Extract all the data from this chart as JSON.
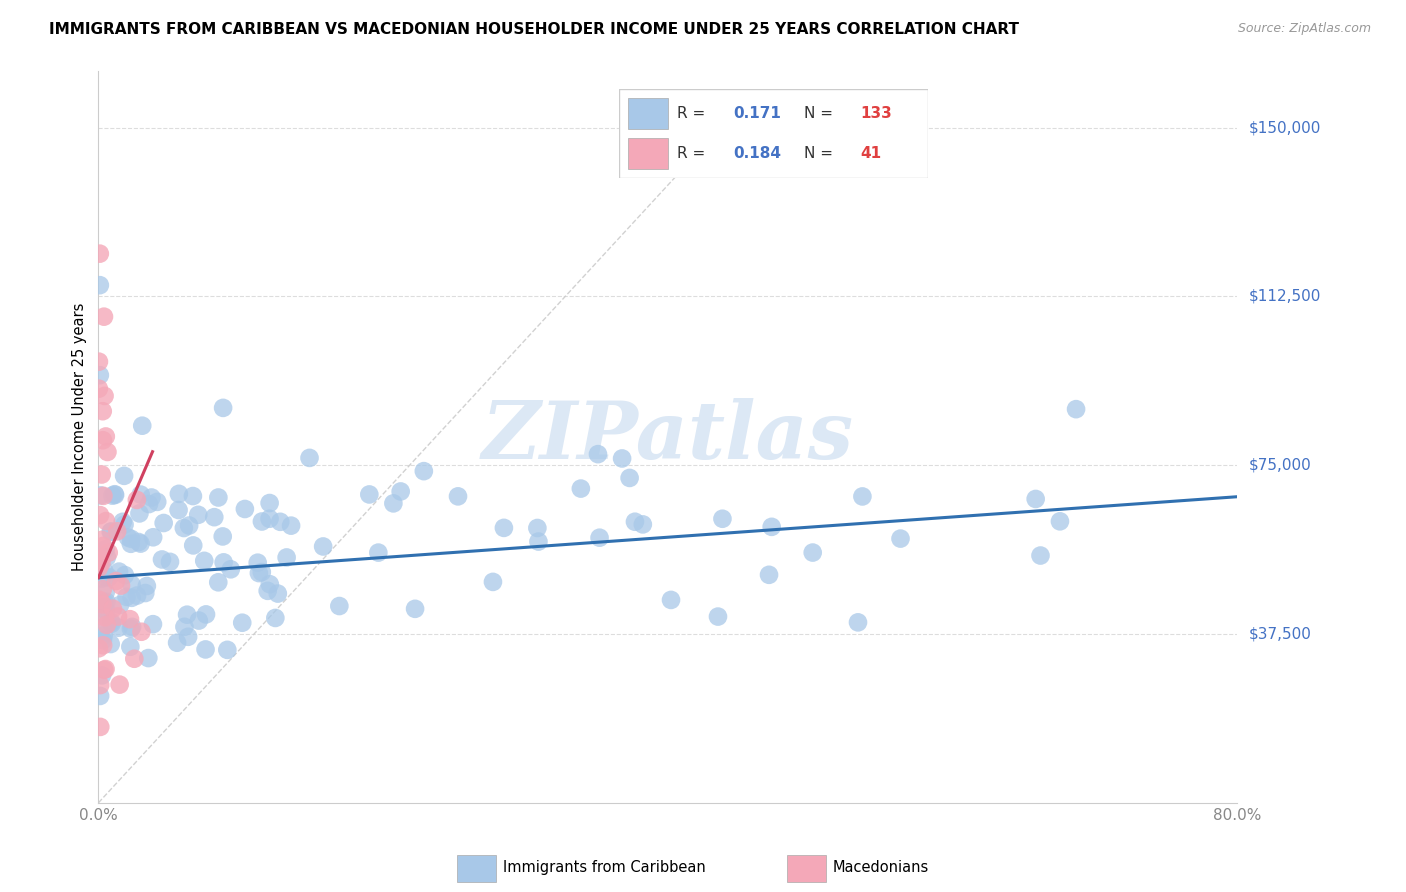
{
  "title": "IMMIGRANTS FROM CARIBBEAN VS MACEDONIAN HOUSEHOLDER INCOME UNDER 25 YEARS CORRELATION CHART",
  "source": "Source: ZipAtlas.com",
  "ylabel": "Householder Income Under 25 years",
  "ytick_labels": [
    "$37,500",
    "$75,000",
    "$112,500",
    "$150,000"
  ],
  "ytick_values": [
    37500,
    75000,
    112500,
    150000
  ],
  "ymin": 0,
  "ymax": 162500,
  "xmin": 0.0,
  "xmax": 0.8,
  "legend_v1": "0.171",
  "legend_n1v": "133",
  "legend_v2": "0.184",
  "legend_n2v": "41",
  "color_caribbean": "#a8c8e8",
  "color_macedonian": "#f4a8b8",
  "color_caribbean_line": "#3070b0",
  "color_macedonian_line": "#d04060",
  "color_diagonal": "#cccccc",
  "watermark": "ZIPatlas",
  "watermark_color": "#dce8f5"
}
